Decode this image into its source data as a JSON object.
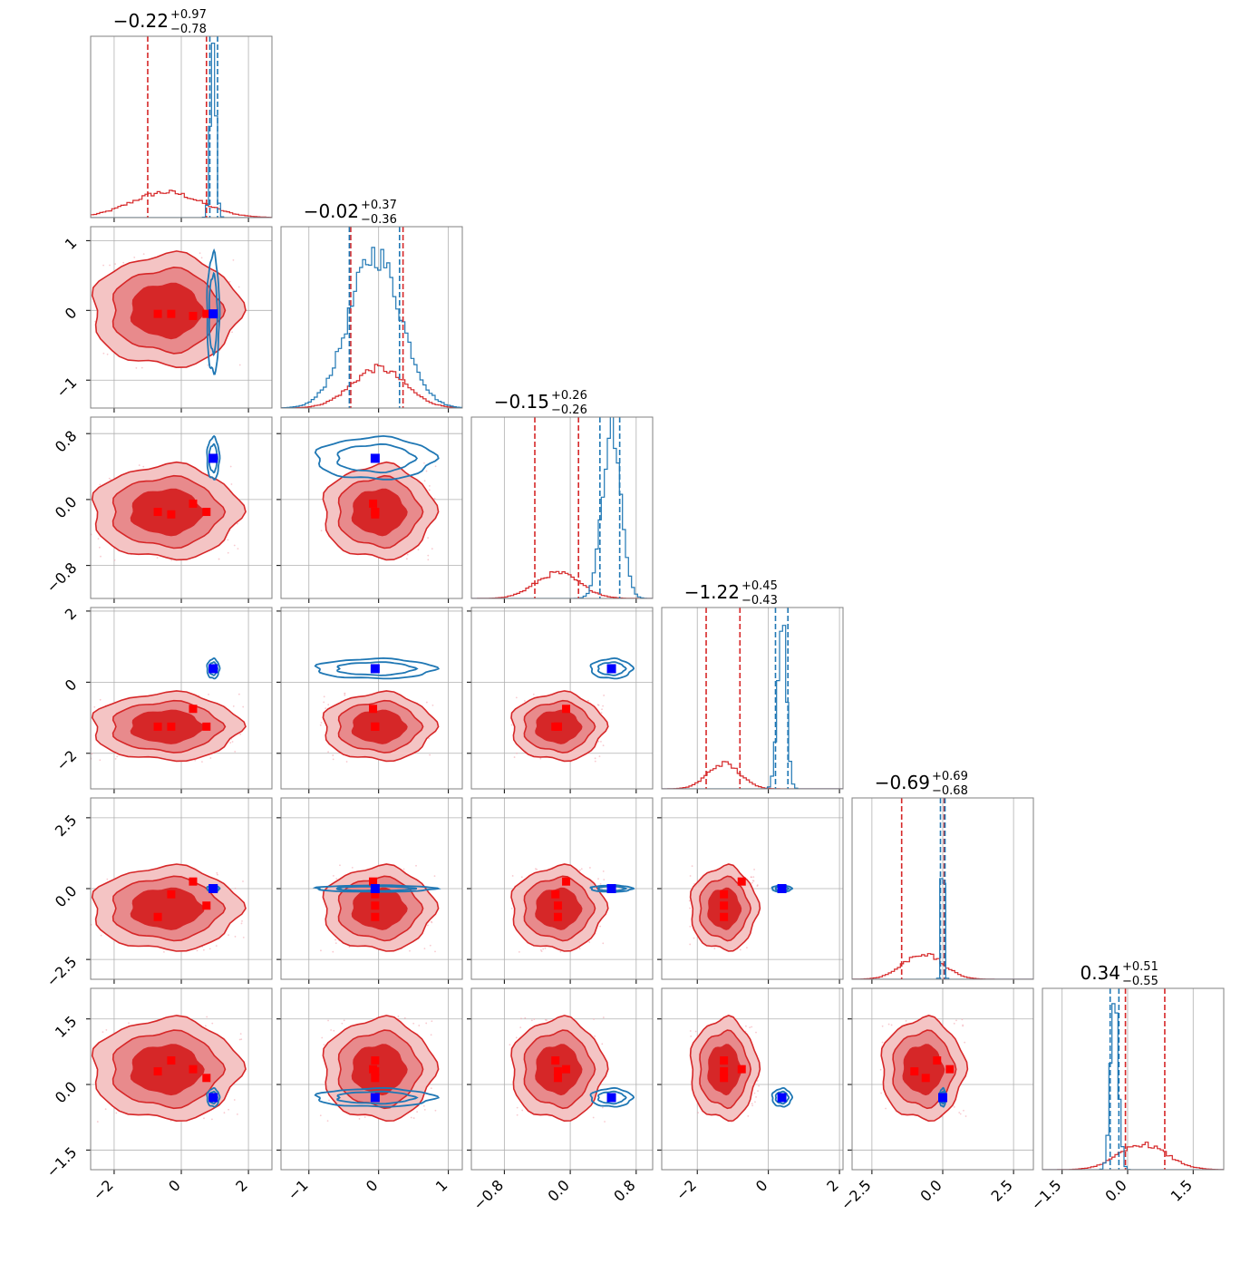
{
  "chart_data": {
    "type": "corner",
    "n_params": 6,
    "colors": {
      "prior": "#d62728",
      "posterior": "#1f77b4",
      "truth": "#0000ff",
      "reference": "#ff0000",
      "grid": "#b0b0b0",
      "frame": "#808080"
    },
    "titles": [
      {
        "main": "−0.22",
        "plus": "+0.97",
        "minus": "−0.78"
      },
      {
        "main": "−0.02",
        "plus": "+0.37",
        "minus": "−0.36"
      },
      {
        "main": "−0.15",
        "plus": "+0.26",
        "minus": "−0.26"
      },
      {
        "main": "−1.22",
        "plus": "+0.45",
        "minus": "−0.43"
      },
      {
        "main": "−0.69",
        "plus": "+0.69",
        "minus": "−0.68"
      },
      {
        "main": "0.34",
        "plus": "+0.51",
        "minus": "−0.55"
      }
    ],
    "ranges": [
      [
        -2.7,
        2.7
      ],
      [
        -1.4,
        1.2
      ],
      [
        -1.2,
        1.0
      ],
      [
        -3.0,
        2.1
      ],
      [
        -3.2,
        3.2
      ],
      [
        -1.95,
        2.2
      ]
    ],
    "ticks": [
      {
        "values": [
          -2,
          0,
          2
        ],
        "labels": [
          "−2",
          "0",
          "2"
        ]
      },
      {
        "values": [
          -1,
          0,
          1
        ],
        "labels": [
          "−1",
          "0",
          "1"
        ]
      },
      {
        "values": [
          -0.8,
          0.0,
          0.8
        ],
        "labels": [
          "−0.8",
          "0.0",
          "0.8"
        ]
      },
      {
        "values": [
          -2,
          0,
          2
        ],
        "labels": [
          "−2",
          "0",
          "2"
        ]
      },
      {
        "values": [
          -2.5,
          0.0,
          2.5
        ],
        "labels": [
          "−2.5",
          "0.0",
          "2.5"
        ]
      },
      {
        "values": [
          -1.5,
          0.0,
          1.5
        ],
        "labels": [
          "−1.5",
          "0.0",
          "1.5"
        ]
      }
    ],
    "prior": {
      "mean": [
        -0.45,
        0.0,
        -0.15,
        -1.25,
        -0.7,
        0.35
      ],
      "sd": [
        1.05,
        0.38,
        0.27,
        0.45,
        0.7,
        0.55
      ],
      "quantiles": [
        [
          -1.0,
          0.75
        ],
        [
          -0.4,
          0.35
        ],
        [
          -0.43,
          0.1
        ],
        [
          -1.75,
          -0.8
        ],
        [
          -1.45,
          0.05
        ],
        [
          -0.05,
          0.85
        ]
      ]
    },
    "posterior": {
      "mean": [
        0.95,
        -0.05,
        0.5,
        0.38,
        0.0,
        -0.3
      ],
      "sd": [
        0.08,
        0.37,
        0.11,
        0.12,
        0.05,
        0.09
      ],
      "quantiles": [
        [
          0.85,
          1.08
        ],
        [
          -0.42,
          0.3
        ],
        [
          0.36,
          0.6
        ],
        [
          0.2,
          0.55
        ],
        [
          -0.08,
          0.08
        ],
        [
          -0.4,
          -0.2
        ]
      ]
    },
    "truth": [
      0.95,
      -0.05,
      0.5,
      0.38,
      0.0,
      -0.3
    ],
    "reference_points": [
      [
        -0.7,
        -0.05,
        -0.15,
        -1.25,
        -1.0,
        0.3
      ],
      [
        -0.3,
        -0.05,
        -0.18,
        -1.25,
        -0.2,
        0.55
      ],
      [
        0.35,
        -0.08,
        -0.05,
        -0.75,
        0.25,
        0.35
      ],
      [
        0.75,
        -0.05,
        -0.15,
        -1.25,
        -0.6,
        0.15
      ]
    ]
  }
}
